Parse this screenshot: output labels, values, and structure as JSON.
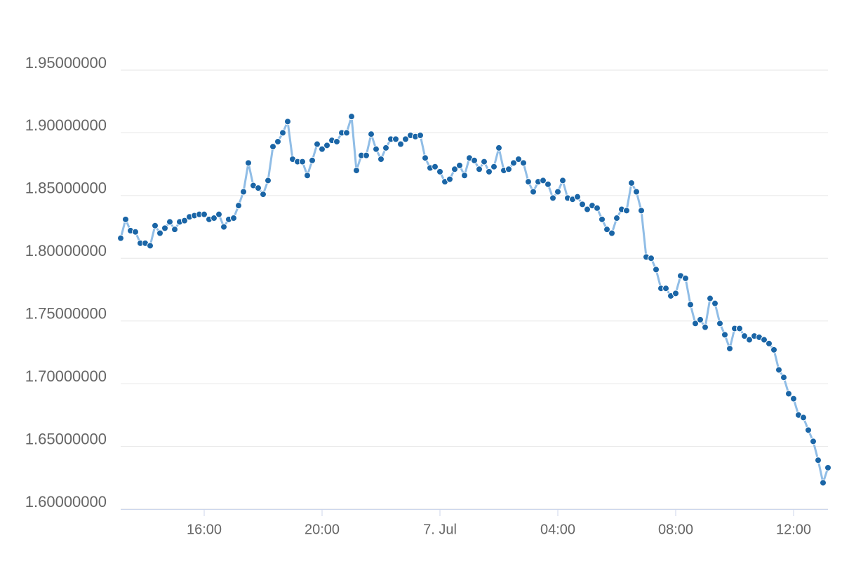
{
  "chart_data": {
    "type": "line",
    "x": [
      790,
      800,
      810,
      820,
      830,
      840,
      850,
      860,
      870,
      880,
      890,
      900,
      910,
      920,
      930,
      940,
      950,
      960,
      970,
      980,
      990,
      1000,
      1010,
      1020,
      1030,
      1040,
      1050,
      1060,
      1070,
      1080,
      1090,
      1100,
      1110,
      1120,
      1130,
      1140,
      1150,
      1160,
      1170,
      1180,
      1190,
      1200,
      1210,
      1220,
      1230,
      1240,
      1250,
      1260,
      1270,
      1280,
      1290,
      1300,
      1310,
      1320,
      1330,
      1340,
      1350,
      1360,
      1370,
      1380,
      1390,
      1400,
      1410,
      1420,
      1430,
      1440,
      1450,
      1460,
      1470,
      1480,
      1490,
      1500,
      1510,
      1520,
      1530,
      1540,
      1550,
      1560,
      1570,
      1580,
      1590,
      1600,
      1610,
      1620,
      1630,
      1640,
      1650,
      1660,
      1670,
      1680,
      1690,
      1700,
      1710,
      1720,
      1730,
      1740,
      1750,
      1760,
      1770,
      1780,
      1790,
      1800,
      1810,
      1820,
      1830,
      1840,
      1850,
      1860,
      1870,
      1880,
      1890,
      1900,
      1910,
      1920,
      1930,
      1940,
      1950,
      1960,
      1970,
      1980,
      1990,
      2000,
      2010,
      2020,
      2030,
      2040,
      2050,
      2060,
      2070,
      2080,
      2090,
      2100,
      2110,
      2120,
      2130,
      2140,
      2150,
      2160,
      2170,
      2180,
      2190,
      2200,
      2210,
      2220,
      2230
    ],
    "values": [
      1.816,
      1.831,
      1.822,
      1.821,
      1.812,
      1.812,
      1.81,
      1.826,
      1.82,
      1.824,
      1.829,
      1.823,
      1.829,
      1.83,
      1.833,
      1.834,
      1.835,
      1.835,
      1.831,
      1.832,
      1.835,
      1.825,
      1.831,
      1.832,
      1.842,
      1.853,
      1.876,
      1.858,
      1.856,
      1.851,
      1.862,
      1.889,
      1.893,
      1.9,
      1.909,
      1.879,
      1.877,
      1.877,
      1.866,
      1.878,
      1.891,
      1.887,
      1.89,
      1.894,
      1.893,
      1.9,
      1.9,
      1.913,
      1.87,
      1.882,
      1.882,
      1.899,
      1.887,
      1.879,
      1.888,
      1.895,
      1.895,
      1.891,
      1.895,
      1.898,
      1.897,
      1.898,
      1.88,
      1.872,
      1.873,
      1.869,
      1.861,
      1.863,
      1.871,
      1.874,
      1.866,
      1.88,
      1.878,
      1.871,
      1.877,
      1.869,
      1.873,
      1.888,
      1.87,
      1.871,
      1.876,
      1.879,
      1.876,
      1.861,
      1.853,
      1.861,
      1.862,
      1.859,
      1.848,
      1.853,
      1.862,
      1.848,
      1.847,
      1.849,
      1.843,
      1.839,
      1.842,
      1.84,
      1.831,
      1.823,
      1.82,
      1.832,
      1.839,
      1.838,
      1.86,
      1.853,
      1.838,
      1.801,
      1.8,
      1.791,
      1.776,
      1.776,
      1.77,
      1.772,
      1.786,
      1.784,
      1.763,
      1.748,
      1.751,
      1.745,
      1.768,
      1.764,
      1.748,
      1.739,
      1.728,
      1.744,
      1.744,
      1.738,
      1.735,
      1.738,
      1.737,
      1.735,
      1.732,
      1.727,
      1.711,
      1.705,
      1.692,
      1.688,
      1.675,
      1.673,
      1.663,
      1.654,
      1.639,
      1.621,
      1.633
    ],
    "color": "#90bde6",
    "marker_color": "#1a65a6",
    "xlim": [
      790,
      2230
    ],
    "xticks": [
      {
        "value": 960,
        "label": "16:00"
      },
      {
        "value": 1200,
        "label": "20:00"
      },
      {
        "value": 1440,
        "label": "7. Jul"
      },
      {
        "value": 1680,
        "label": "04:00"
      },
      {
        "value": 1920,
        "label": "08:00"
      },
      {
        "value": 2160,
        "label": "12:00"
      }
    ],
    "ylim": [
      1.6,
      1.95
    ],
    "yticks": [
      {
        "value": 1.6,
        "label": "1.60000000"
      },
      {
        "value": 1.65,
        "label": "1.65000000"
      },
      {
        "value": 1.7,
        "label": "1.70000000"
      },
      {
        "value": 1.75,
        "label": "1.75000000"
      },
      {
        "value": 1.8,
        "label": "1.80000000"
      },
      {
        "value": 1.85,
        "label": "1.85000000"
      },
      {
        "value": 1.9,
        "label": "1.90000000"
      },
      {
        "value": 1.95,
        "label": "1.95000000"
      }
    ],
    "grid": true
  }
}
